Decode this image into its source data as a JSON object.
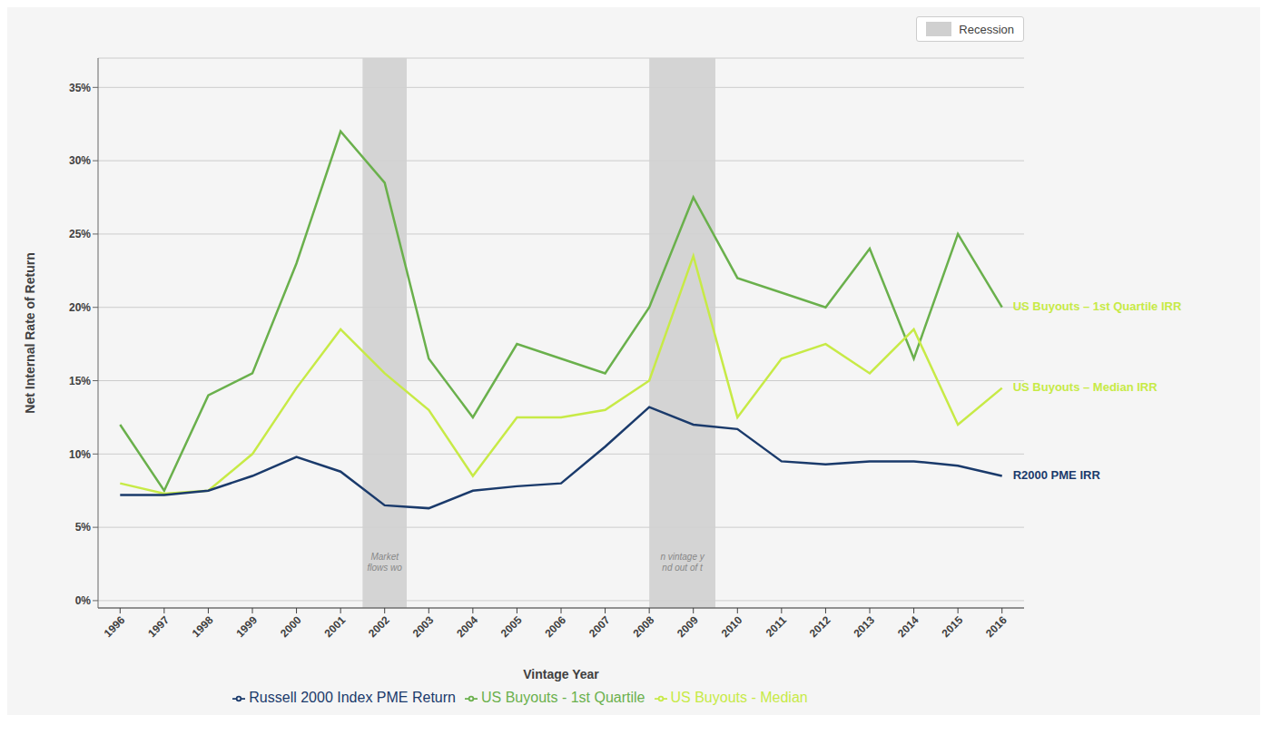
{
  "chart_data": {
    "type": "line",
    "xlabel": "Vintage Year",
    "ylabel": "Net Internal Rate of Return",
    "x": [
      1996,
      1997,
      1998,
      1999,
      2000,
      2001,
      2002,
      2003,
      2004,
      2005,
      2006,
      2007,
      2008,
      2009,
      2010,
      2011,
      2012,
      2013,
      2014,
      2015,
      2016
    ],
    "xlim": [
      1995.5,
      2016.5
    ],
    "xticks": [
      1996,
      1997,
      1998,
      1999,
      2000,
      2001,
      2002,
      2003,
      2004,
      2005,
      2006,
      2007,
      2008,
      2009,
      2010,
      2011,
      2012,
      2013,
      2014,
      2015,
      2016
    ],
    "ylim": [
      -0.005,
      0.37
    ],
    "yticks": [
      {
        "value": 0.0,
        "label": "0%"
      },
      {
        "value": 0.05,
        "label": "5%"
      },
      {
        "value": 0.1,
        "label": "10%"
      },
      {
        "value": 0.15,
        "label": "15%"
      },
      {
        "value": 0.2,
        "label": "20%"
      },
      {
        "value": 0.25,
        "label": "25%"
      },
      {
        "value": 0.3,
        "label": "30%"
      },
      {
        "value": 0.35,
        "label": "35%"
      }
    ],
    "grid": true,
    "legend": "bottom",
    "series": [
      {
        "name": "US Buyouts - 1st Quartile",
        "color": "#6ab04c",
        "values": [
          0.12,
          0.075,
          0.14,
          0.155,
          0.23,
          0.32,
          0.285,
          0.165,
          0.125,
          0.175,
          0.165,
          0.155,
          0.2,
          0.275,
          0.22,
          0.21,
          0.2,
          0.24,
          0.165,
          0.25,
          0.2
        ]
      },
      {
        "name": "US Buyouts - Median",
        "color": "#c7ea46",
        "values": [
          0.08,
          0.073,
          0.075,
          0.1,
          0.145,
          0.185,
          0.155,
          0.13,
          0.085,
          0.125,
          0.125,
          0.13,
          0.15,
          0.235,
          0.125,
          0.165,
          0.175,
          0.155,
          0.185,
          0.12,
          0.145
        ]
      },
      {
        "name": "Russell 2000 Index PME Return",
        "color": "#1a3a6b",
        "values": [
          0.072,
          0.072,
          0.075,
          0.085,
          0.098,
          0.088,
          0.065,
          0.063,
          0.075,
          0.078,
          0.08,
          0.105,
          0.132,
          0.12,
          0.117,
          0.095,
          0.093,
          0.095,
          0.095,
          0.092,
          0.085
        ]
      }
    ],
    "annotations": [
      {
        "text": "US Buyouts – 1st Quartile IRR",
        "color": "#c7ea46"
      },
      {
        "text": "US Buyouts – Median IRR",
        "color": "#c7ea46"
      },
      {
        "text": "R2000 PME IRR",
        "color": "#1a3a6b"
      }
    ],
    "bands": [
      {
        "from": 2001.5,
        "to": 2002.5,
        "text": "Market\nflows wo"
      },
      {
        "from": 2008.0,
        "to": 2009.5,
        "text": "n vintage y\nnd out of t"
      }
    ],
    "band_label": "Recession",
    "band_color": "#d0d0d0",
    "band_text_color": "#888888",
    "text_color": "#404040",
    "grid_color": "#cccccc",
    "background": "#f5f5f5"
  }
}
